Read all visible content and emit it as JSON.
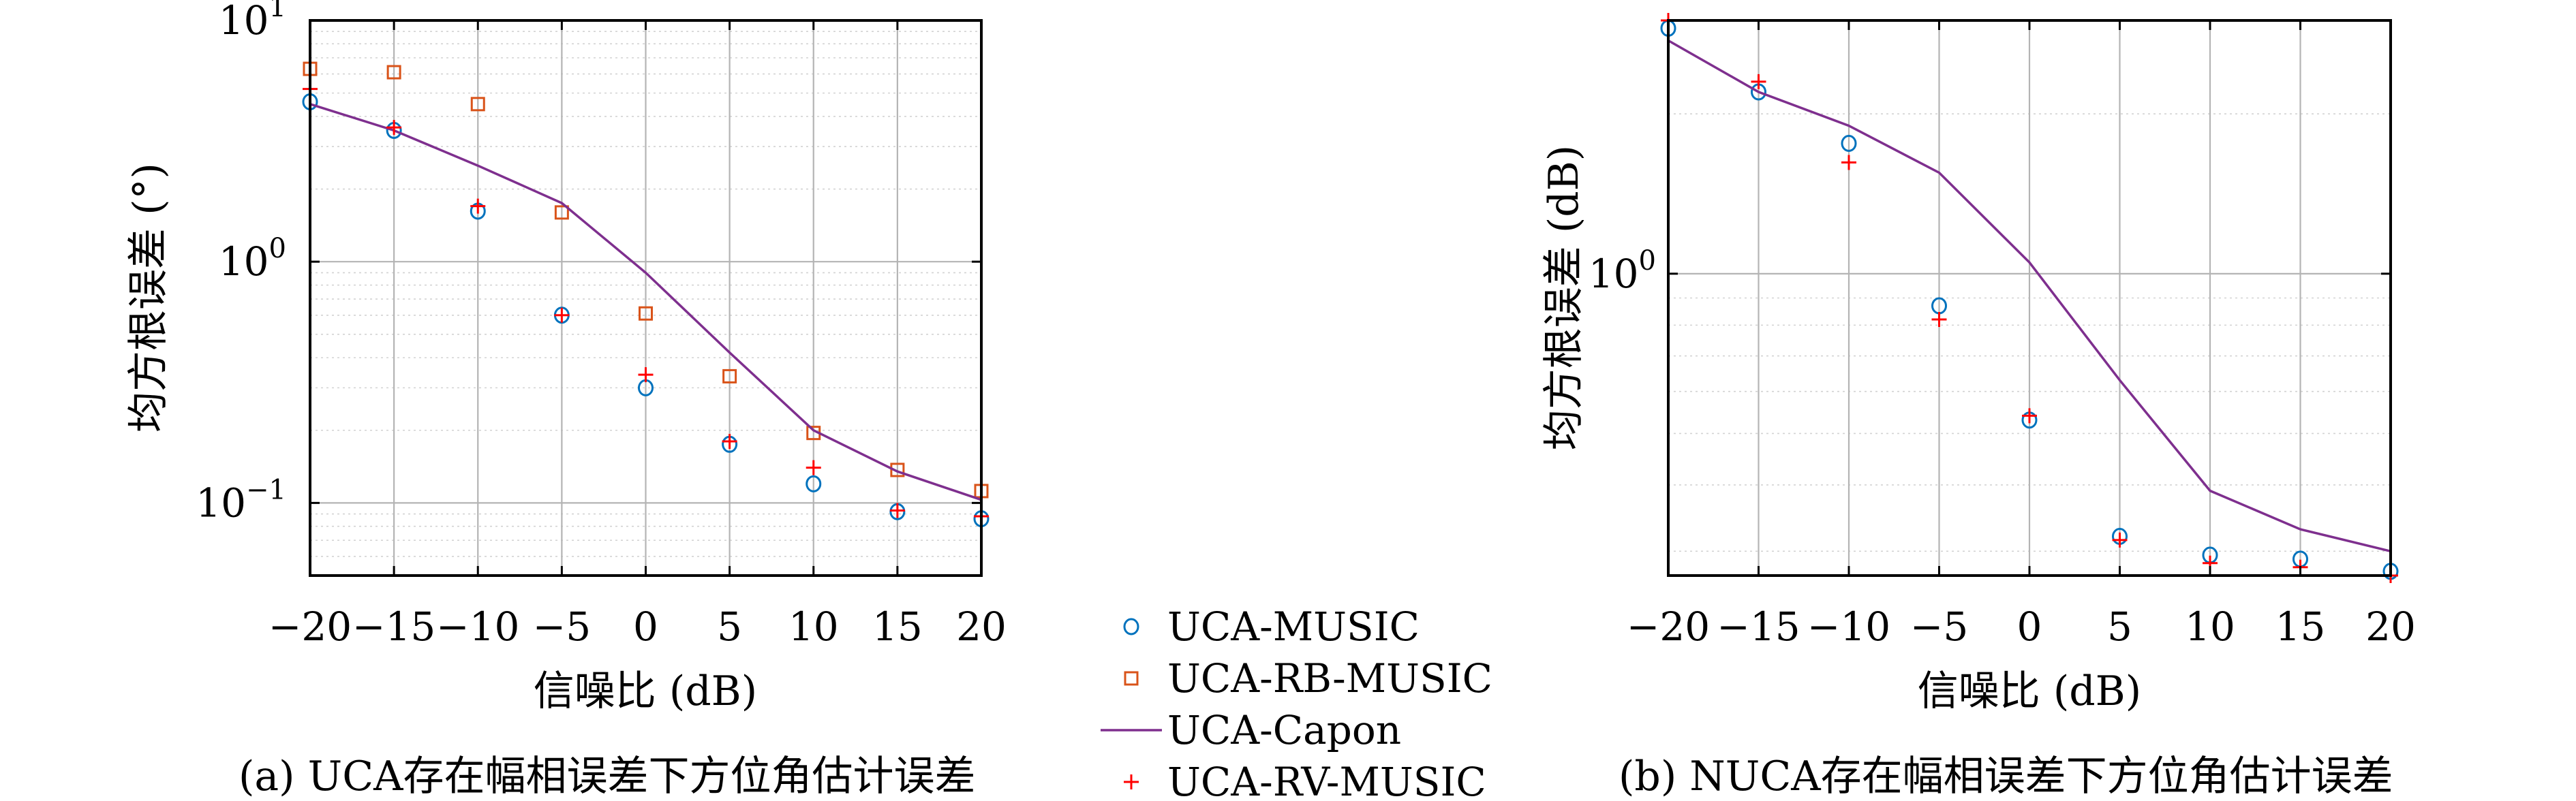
{
  "chart_data": [
    {
      "type": "scatter",
      "panel": "a",
      "caption": "(a) UCA存在幅相误差下方位角估计误差",
      "xlabel": "信噪比 (dB)",
      "ylabel": "均方根误差 (°)",
      "yscale": "log",
      "xlim": [
        -20,
        20
      ],
      "ylim": [
        0.05,
        10
      ],
      "x_ticks": [
        -20,
        -15,
        -10,
        -5,
        0,
        5,
        10,
        15,
        20
      ],
      "x_tick_labels": [
        "−20",
        "−15",
        "−10",
        "−5",
        "0",
        "5",
        "10",
        "15",
        "20"
      ],
      "y_ticks": [
        {
          "value": 0.1,
          "base": "10",
          "exp": "−1"
        },
        {
          "value": 1,
          "base": "10",
          "exp": "0"
        },
        {
          "value": 10,
          "base": "10",
          "exp": "1"
        }
      ],
      "grid": true,
      "x": [
        -20,
        -15,
        -10,
        -5,
        0,
        5,
        10,
        15,
        20
      ],
      "series": [
        {
          "name": "UCA-MUSIC",
          "marker": "circle",
          "color": "#0072BD",
          "values": [
            4.6,
            3.5,
            1.62,
            0.6,
            0.3,
            0.175,
            0.12,
            0.092,
            0.086
          ]
        },
        {
          "name": "UCA-RB-MUSIC",
          "marker": "square",
          "color": "#D95319",
          "values": [
            6.3,
            6.1,
            4.5,
            1.6,
            0.61,
            0.335,
            0.195,
            0.137,
            0.112
          ]
        },
        {
          "name": "UCA-Capon",
          "marker": "line",
          "color": "#7E2F8E",
          "values": [
            4.5,
            3.5,
            2.5,
            1.75,
            0.9,
            0.42,
            0.2,
            0.135,
            0.103
          ]
        },
        {
          "name": "UCA-RV-MUSIC",
          "marker": "plus",
          "color": "#FF0000",
          "values": [
            5.2,
            3.6,
            1.7,
            0.6,
            0.34,
            0.18,
            0.14,
            0.093,
            0.088
          ]
        }
      ]
    },
    {
      "type": "scatter",
      "panel": "b",
      "caption": "(b) NUCA存在幅相误差下方位角估计误差",
      "xlabel": "信噪比 (dB)",
      "ylabel": "均方根误差 (dB)",
      "yscale": "log",
      "xlim": [
        -20,
        20
      ],
      "ylim": [
        0.27,
        3.0
      ],
      "x_ticks": [
        -20,
        -15,
        -10,
        -5,
        0,
        5,
        10,
        15,
        20
      ],
      "x_tick_labels": [
        "−20",
        "−15",
        "−10",
        "−5",
        "0",
        "5",
        "10",
        "15",
        "20"
      ],
      "y_ticks": [
        {
          "value": 1,
          "base": "10",
          "exp": "0"
        }
      ],
      "grid": true,
      "x": [
        -20,
        -15,
        -10,
        -5,
        0,
        5,
        10,
        15,
        20
      ],
      "series": [
        {
          "name": "UCA-MUSIC",
          "marker": "circle",
          "color": "#0072BD",
          "values": [
            2.9,
            2.2,
            1.76,
            0.87,
            0.53,
            0.32,
            0.295,
            0.29,
            0.275
          ]
        },
        {
          "name": "UCA-Capon",
          "marker": "line",
          "color": "#7E2F8E",
          "values": [
            2.75,
            2.2,
            1.9,
            1.55,
            1.05,
            0.63,
            0.39,
            0.33,
            0.3
          ]
        },
        {
          "name": "UCA-RV-MUSIC",
          "marker": "plus",
          "color": "#FF0000",
          "values": [
            3.0,
            2.3,
            1.62,
            0.82,
            0.54,
            0.315,
            0.285,
            0.28,
            0.27
          ]
        }
      ]
    }
  ],
  "legend": {
    "placement": "between-panels",
    "items": [
      {
        "label": "UCA-MUSIC",
        "marker": "circle",
        "color": "#0072BD"
      },
      {
        "label": "UCA-RB-MUSIC",
        "marker": "square",
        "color": "#D95319"
      },
      {
        "label": "UCA-Capon",
        "marker": "line",
        "color": "#7E2F8E"
      },
      {
        "label": "UCA-RV-MUSIC",
        "marker": "plus",
        "color": "#FF0000"
      }
    ]
  }
}
